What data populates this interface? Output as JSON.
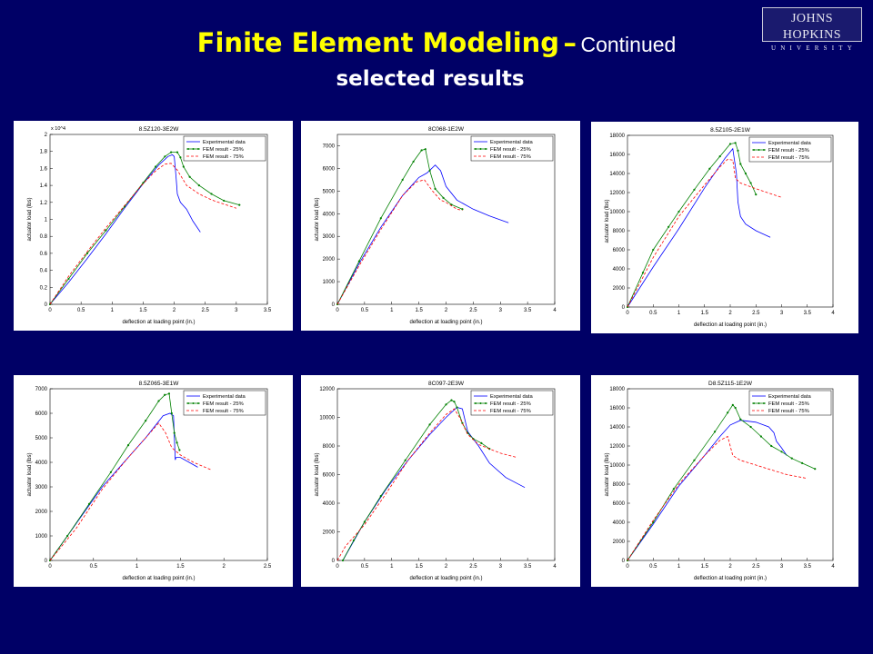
{
  "header": {
    "title_main": "Finite Element Modeling",
    "title_dash": "–",
    "title_cont": "Continued",
    "subtitle": "selected results"
  },
  "logo": {
    "line1": "JOHNS HOPKINS",
    "line2": "UNIVERSITY"
  },
  "colors": {
    "experimental": "#0000ff",
    "fem25": "#008000",
    "fem75": "#ff0000",
    "background": "#000066",
    "title": "#ffff00"
  },
  "chart_data": [
    {
      "type": "line",
      "title": "8.5Z120-3E2W",
      "xlabel": "deflection at loading point (in.)",
      "ylabel": "actuator load (lbs)",
      "multiplier": "x 10^4",
      "xlim": [
        0,
        3.5
      ],
      "ylim": [
        0,
        2
      ],
      "xticks": [
        0,
        0.5,
        1,
        1.5,
        2,
        2.5,
        3,
        3.5
      ],
      "yticks": [
        0,
        0.2,
        0.4,
        0.6,
        0.8,
        1,
        1.2,
        1.4,
        1.6,
        1.8,
        2
      ],
      "legend": [
        "Experimental data",
        "FEM result - 25%",
        "FEM result - 75%"
      ],
      "legend_position": "top-right",
      "series": [
        {
          "name": "Experimental data",
          "x": [
            0,
            0.3,
            0.6,
            0.9,
            1.2,
            1.5,
            1.75,
            1.9,
            1.97,
            2.0,
            2.03,
            2.05,
            2.1,
            2.2,
            2.3,
            2.42
          ],
          "y": [
            0,
            0.26,
            0.54,
            0.83,
            1.13,
            1.42,
            1.64,
            1.74,
            1.76,
            1.74,
            1.5,
            1.3,
            1.2,
            1.12,
            0.98,
            0.85
          ]
        },
        {
          "name": "FEM result - 25%",
          "x": [
            0,
            0.3,
            0.6,
            0.9,
            1.2,
            1.5,
            1.7,
            1.85,
            1.95,
            2.05,
            2.1,
            2.15,
            2.25,
            2.4,
            2.6,
            2.8,
            3.05
          ],
          "y": [
            0,
            0.3,
            0.6,
            0.87,
            1.15,
            1.43,
            1.62,
            1.74,
            1.79,
            1.79,
            1.73,
            1.62,
            1.5,
            1.4,
            1.3,
            1.22,
            1.17
          ]
        },
        {
          "name": "FEM result - 75%",
          "x": [
            0,
            0.3,
            0.6,
            0.9,
            1.2,
            1.5,
            1.7,
            1.85,
            1.95,
            2.05,
            2.2,
            2.4,
            2.6,
            2.8,
            3.0
          ],
          "y": [
            0,
            0.33,
            0.62,
            0.9,
            1.16,
            1.42,
            1.57,
            1.65,
            1.66,
            1.58,
            1.4,
            1.3,
            1.23,
            1.18,
            1.13
          ]
        }
      ]
    },
    {
      "type": "line",
      "title": "8C068-1E2W",
      "xlabel": "deflection at loading point (in.)",
      "ylabel": "actuator load (lbs)",
      "xlim": [
        0,
        4
      ],
      "ylim": [
        0,
        7500
      ],
      "xticks": [
        0,
        0.5,
        1,
        1.5,
        2,
        2.5,
        3,
        3.5,
        4
      ],
      "yticks": [
        0,
        1000,
        2000,
        3000,
        4000,
        5000,
        6000,
        7000
      ],
      "legend": [
        "Experimental data",
        "FEM result - 25%",
        "FEM result - 75%"
      ],
      "legend_position": "top-right",
      "series": [
        {
          "name": "Experimental data",
          "x": [
            0,
            0.4,
            0.8,
            1.2,
            1.5,
            1.65,
            1.8,
            1.9,
            2.0,
            2.2,
            2.5,
            2.8,
            3.15
          ],
          "y": [
            0,
            1800,
            3400,
            4800,
            5600,
            5800,
            6150,
            5900,
            5200,
            4600,
            4200,
            3900,
            3600
          ]
        },
        {
          "name": "FEM result - 25%",
          "x": [
            0,
            0.4,
            0.8,
            1.2,
            1.4,
            1.55,
            1.62,
            1.7,
            1.8,
            1.95,
            2.1,
            2.3
          ],
          "y": [
            0,
            1900,
            3800,
            5500,
            6300,
            6800,
            6850,
            5900,
            5100,
            4700,
            4400,
            4200
          ]
        },
        {
          "name": "FEM result - 75%",
          "x": [
            0,
            0.4,
            0.8,
            1.2,
            1.45,
            1.6,
            1.75,
            1.9,
            2.0,
            2.2,
            2.3
          ],
          "y": [
            0,
            1700,
            3300,
            4800,
            5400,
            5500,
            5000,
            4600,
            4500,
            4200,
            4150
          ]
        }
      ]
    },
    {
      "type": "line",
      "title": "8.5Z105-2E1W",
      "xlabel": "deflection at loading point (in.)",
      "ylabel": "actuator load (lbs)",
      "xlim": [
        0,
        4
      ],
      "ylim": [
        0,
        18000
      ],
      "xticks": [
        0,
        0.5,
        1,
        1.5,
        2,
        2.5,
        3,
        3.5,
        4
      ],
      "yticks": [
        0,
        2000,
        4000,
        6000,
        8000,
        10000,
        12000,
        14000,
        16000,
        18000
      ],
      "legend": [
        "Experimental data",
        "FEM result - 25%",
        "FEM result - 75%"
      ],
      "legend_position": "top-right",
      "series": [
        {
          "name": "Experimental data",
          "x": [
            0,
            0.5,
            1.0,
            1.5,
            1.9,
            2.05,
            2.12,
            2.15,
            2.2,
            2.3,
            2.5,
            2.78
          ],
          "y": [
            0,
            4200,
            8200,
            12500,
            15600,
            16600,
            14000,
            11000,
            9500,
            8700,
            8000,
            7300
          ]
        },
        {
          "name": "FEM result - 25%",
          "x": [
            0,
            0.3,
            0.5,
            0.8,
            1.0,
            1.3,
            1.6,
            1.8,
            2.0,
            2.1,
            2.15,
            2.2,
            2.3,
            2.4,
            2.5
          ],
          "y": [
            0,
            3600,
            6000,
            8400,
            10000,
            12300,
            14500,
            15800,
            17100,
            17200,
            16400,
            15000,
            14000,
            13000,
            11800
          ]
        },
        {
          "name": "FEM result - 75%",
          "x": [
            0,
            0.5,
            1.0,
            1.5,
            1.8,
            1.95,
            2.05,
            2.1,
            2.2,
            2.3,
            2.5,
            3.0
          ],
          "y": [
            0,
            5200,
            9500,
            12800,
            14700,
            15500,
            15400,
            13500,
            13000,
            12800,
            12400,
            11500
          ]
        }
      ]
    },
    {
      "type": "line",
      "title": "8.5Z065-3E1W",
      "xlabel": "deflection at loading point (in.)",
      "ylabel": "actuator load (lbs)",
      "xlim": [
        0,
        2.5
      ],
      "ylim": [
        0,
        7000
      ],
      "xticks": [
        0,
        0.5,
        1,
        1.5,
        2,
        2.5
      ],
      "yticks": [
        0,
        1000,
        2000,
        3000,
        4000,
        5000,
        6000,
        7000
      ],
      "legend": [
        "Experimental data",
        "FEM result - 25%",
        "FEM result - 75%"
      ],
      "legend_position": "top-right",
      "series": [
        {
          "name": "Experimental data",
          "x": [
            0,
            0.3,
            0.6,
            0.9,
            1.1,
            1.3,
            1.38,
            1.42,
            1.44,
            1.45,
            1.5,
            1.6,
            1.7
          ],
          "y": [
            0,
            1500,
            3000,
            4200,
            5000,
            5900,
            6000,
            5900,
            4100,
            4200,
            4200,
            4000,
            3800
          ]
        },
        {
          "name": "FEM result - 25%",
          "x": [
            0,
            0.2,
            0.45,
            0.7,
            0.9,
            1.1,
            1.25,
            1.32,
            1.37,
            1.4,
            1.43,
            1.46,
            1.49
          ],
          "y": [
            0,
            1000,
            2300,
            3600,
            4700,
            5700,
            6500,
            6750,
            6800,
            6000,
            5200,
            4800,
            4500
          ]
        },
        {
          "name": "FEM result - 75%",
          "x": [
            0,
            0.3,
            0.6,
            0.9,
            1.1,
            1.25,
            1.33,
            1.4,
            1.5,
            1.65,
            1.85
          ],
          "y": [
            0,
            1300,
            2900,
            4200,
            5000,
            5600,
            5200,
            4600,
            4300,
            4000,
            3700
          ]
        }
      ]
    },
    {
      "type": "line",
      "title": "8C097-2E3W",
      "xlabel": "deflection at loading point (in.)",
      "ylabel": "actuator load (lbs)",
      "xlim": [
        0,
        4
      ],
      "ylim": [
        0,
        12000
      ],
      "xticks": [
        0,
        0.5,
        1,
        1.5,
        2,
        2.5,
        3,
        3.5,
        4
      ],
      "yticks": [
        0,
        2000,
        4000,
        6000,
        8000,
        10000,
        12000
      ],
      "legend": [
        "Experimental data",
        "FEM result - 25%",
        "FEM result - 75%"
      ],
      "legend_position": "top-right",
      "series": [
        {
          "name": "Experimental data",
          "x": [
            0.1,
            0.5,
            0.9,
            1.3,
            1.7,
            2.0,
            2.2,
            2.3,
            2.4,
            2.6,
            2.8,
            3.1,
            3.45
          ],
          "y": [
            0,
            2700,
            5000,
            7000,
            8800,
            10000,
            10700,
            10600,
            9000,
            8000,
            6800,
            5800,
            5100
          ]
        },
        {
          "name": "FEM result - 25%",
          "x": [
            0.1,
            0.3,
            0.5,
            0.8,
            1.25,
            1.7,
            2.0,
            2.1,
            2.15,
            2.2,
            2.3,
            2.4,
            2.5,
            2.65,
            2.8
          ],
          "y": [
            0,
            1400,
            2700,
            4500,
            7000,
            9500,
            10900,
            11200,
            11100,
            10700,
            9600,
            8900,
            8500,
            8200,
            7800
          ]
        },
        {
          "name": "FEM result - 75%",
          "x": [
            0,
            0.15,
            0.5,
            0.9,
            1.3,
            1.7,
            2.0,
            2.15,
            2.25,
            2.4,
            2.6,
            3.0,
            3.3
          ],
          "y": [
            0,
            1000,
            2500,
            4700,
            7000,
            8900,
            10200,
            10600,
            10000,
            8800,
            8100,
            7500,
            7200
          ]
        }
      ]
    },
    {
      "type": "line",
      "title": "D8.5Z115-1E2W",
      "xlabel": "deflection at loading point (in.)",
      "ylabel": "actuator load (lbs)",
      "xlim": [
        0,
        4
      ],
      "ylim": [
        0,
        18000
      ],
      "xticks": [
        0,
        0.5,
        1,
        1.5,
        2,
        2.5,
        3,
        3.5,
        4
      ],
      "yticks": [
        0,
        2000,
        4000,
        6000,
        8000,
        10000,
        12000,
        14000,
        16000,
        18000
      ],
      "legend": [
        "Experimental data",
        "FEM result - 25%",
        "FEM result - 75%"
      ],
      "legend_position": "top-right",
      "series": [
        {
          "name": "Experimental data",
          "x": [
            0,
            0.5,
            1.0,
            1.5,
            1.8,
            2.0,
            2.2,
            2.5,
            2.75,
            2.85,
            2.9,
            3.0,
            3.1
          ],
          "y": [
            0,
            3800,
            7800,
            11000,
            13000,
            14200,
            14700,
            14500,
            14000,
            13400,
            12500,
            11800,
            11000
          ]
        },
        {
          "name": "FEM result - 25%",
          "x": [
            0,
            0.5,
            0.9,
            1.3,
            1.7,
            1.95,
            2.05,
            2.1,
            2.2,
            2.4,
            2.6,
            2.8,
            3.0,
            3.2,
            3.4,
            3.65
          ],
          "y": [
            0,
            4000,
            7500,
            10500,
            13500,
            15500,
            16300,
            16000,
            14800,
            14000,
            13000,
            12000,
            11400,
            10700,
            10200,
            9600
          ]
        },
        {
          "name": "FEM result - 75%",
          "x": [
            0,
            0.5,
            1.0,
            1.5,
            1.8,
            1.95,
            2.05,
            2.2,
            2.5,
            2.8,
            3.1,
            3.5
          ],
          "y": [
            0,
            4200,
            8000,
            11000,
            12600,
            13000,
            11000,
            10500,
            10000,
            9500,
            9000,
            8600
          ]
        }
      ]
    }
  ]
}
